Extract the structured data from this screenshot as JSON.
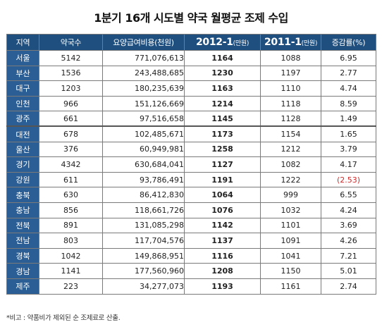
{
  "chart_data": {
    "type": "table",
    "title": "1분기 16개 시도별 약국 월평균 조제 수입",
    "columns": [
      {
        "key": "region",
        "label": "지역",
        "unit": ""
      },
      {
        "key": "pharmacies",
        "label": "약국수",
        "unit": ""
      },
      {
        "key": "cost",
        "label": "요양급여비용",
        "unit": "(천원)"
      },
      {
        "key": "y2012",
        "label": "2012-1",
        "unit": "(만원)"
      },
      {
        "key": "y2011",
        "label": "2011-1",
        "unit": "(만원)"
      },
      {
        "key": "rate",
        "label": "증감률",
        "unit": "(%)"
      }
    ],
    "rows": [
      {
        "region": "서울",
        "pharmacies": "5142",
        "cost": "771,076,613",
        "y2012": "1164",
        "y2011": "1088",
        "rate": "6.95"
      },
      {
        "region": "부산",
        "pharmacies": "1536",
        "cost": "243,488,685",
        "y2012": "1230",
        "y2011": "1197",
        "rate": "2.77"
      },
      {
        "region": "대구",
        "pharmacies": "1203",
        "cost": "180,235,639",
        "y2012": "1163",
        "y2011": "1110",
        "rate": "4.74"
      },
      {
        "region": "인천",
        "pharmacies": "966",
        "cost": "151,126,669",
        "y2012": "1214",
        "y2011": "1118",
        "rate": "8.59"
      },
      {
        "region": "광주",
        "pharmacies": "661",
        "cost": "97,516,658",
        "y2012": "1145",
        "y2011": "1128",
        "rate": "1.49"
      },
      {
        "region": "대전",
        "pharmacies": "678",
        "cost": "102,485,671",
        "y2012": "1173",
        "y2011": "1154",
        "rate": "1.65"
      },
      {
        "region": "울산",
        "pharmacies": "376",
        "cost": "60,949,981",
        "y2012": "1258",
        "y2011": "1212",
        "rate": "3.79"
      },
      {
        "region": "경기",
        "pharmacies": "4342",
        "cost": "630,684,041",
        "y2012": "1127",
        "y2011": "1082",
        "rate": "4.17"
      },
      {
        "region": "강원",
        "pharmacies": "611",
        "cost": "93,786,491",
        "y2012": "1191",
        "y2011": "1222",
        "rate": "(2.53)"
      },
      {
        "region": "충북",
        "pharmacies": "630",
        "cost": "86,412,830",
        "y2012": "1064",
        "y2011": "999",
        "rate": "6.55"
      },
      {
        "region": "충남",
        "pharmacies": "856",
        "cost": "118,661,726",
        "y2012": "1076",
        "y2011": "1032",
        "rate": "4.24"
      },
      {
        "region": "전북",
        "pharmacies": "891",
        "cost": "131,085,298",
        "y2012": "1142",
        "y2011": "1101",
        "rate": "3.69"
      },
      {
        "region": "전남",
        "pharmacies": "803",
        "cost": "117,704,576",
        "y2012": "1137",
        "y2011": "1091",
        "rate": "4.26"
      },
      {
        "region": "경북",
        "pharmacies": "1042",
        "cost": "149,868,951",
        "y2012": "1116",
        "y2011": "1041",
        "rate": "7.21"
      },
      {
        "region": "경남",
        "pharmacies": "1141",
        "cost": "177,560,960",
        "y2012": "1208",
        "y2011": "1150",
        "rate": "5.01"
      },
      {
        "region": "제주",
        "pharmacies": "223",
        "cost": "34,277,073",
        "y2012": "1193",
        "y2011": "1161",
        "rate": "2.74"
      }
    ],
    "note": "*비고 : 약품비가 제외된 순 조제료로 산출.",
    "colors": {
      "header_bg": "#1f4f7f",
      "region_bg": "#2a5e94",
      "negative": "#d42a2a",
      "border": "#7a7a7a"
    }
  }
}
